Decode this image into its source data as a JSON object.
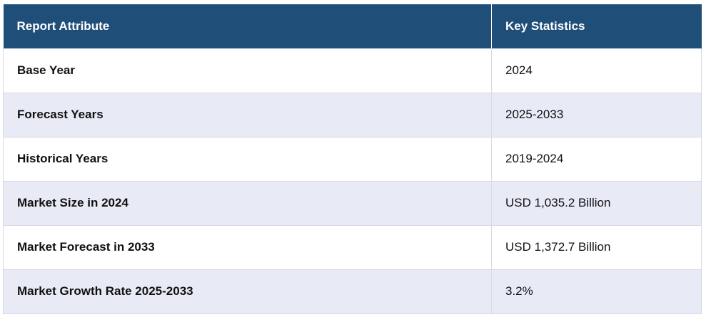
{
  "table": {
    "headers": [
      "Report Attribute",
      "Key Statistics"
    ],
    "rows": [
      [
        "Base Year",
        "2024"
      ],
      [
        "Forecast Years",
        "2025-2033"
      ],
      [
        "Historical Years",
        "2019-2024"
      ],
      [
        "Market Size in 2024",
        "USD 1,035.2 Billion"
      ],
      [
        "Market Forecast in 2033",
        "USD 1,372.7 Billion"
      ],
      [
        "Market Growth Rate 2025-2033",
        "3.2%"
      ]
    ]
  },
  "colors": {
    "header_bg": "#1f4e79",
    "header_text": "#ffffff",
    "row_alt_bg": "#e8eaf6",
    "border": "#d8d8e6"
  }
}
